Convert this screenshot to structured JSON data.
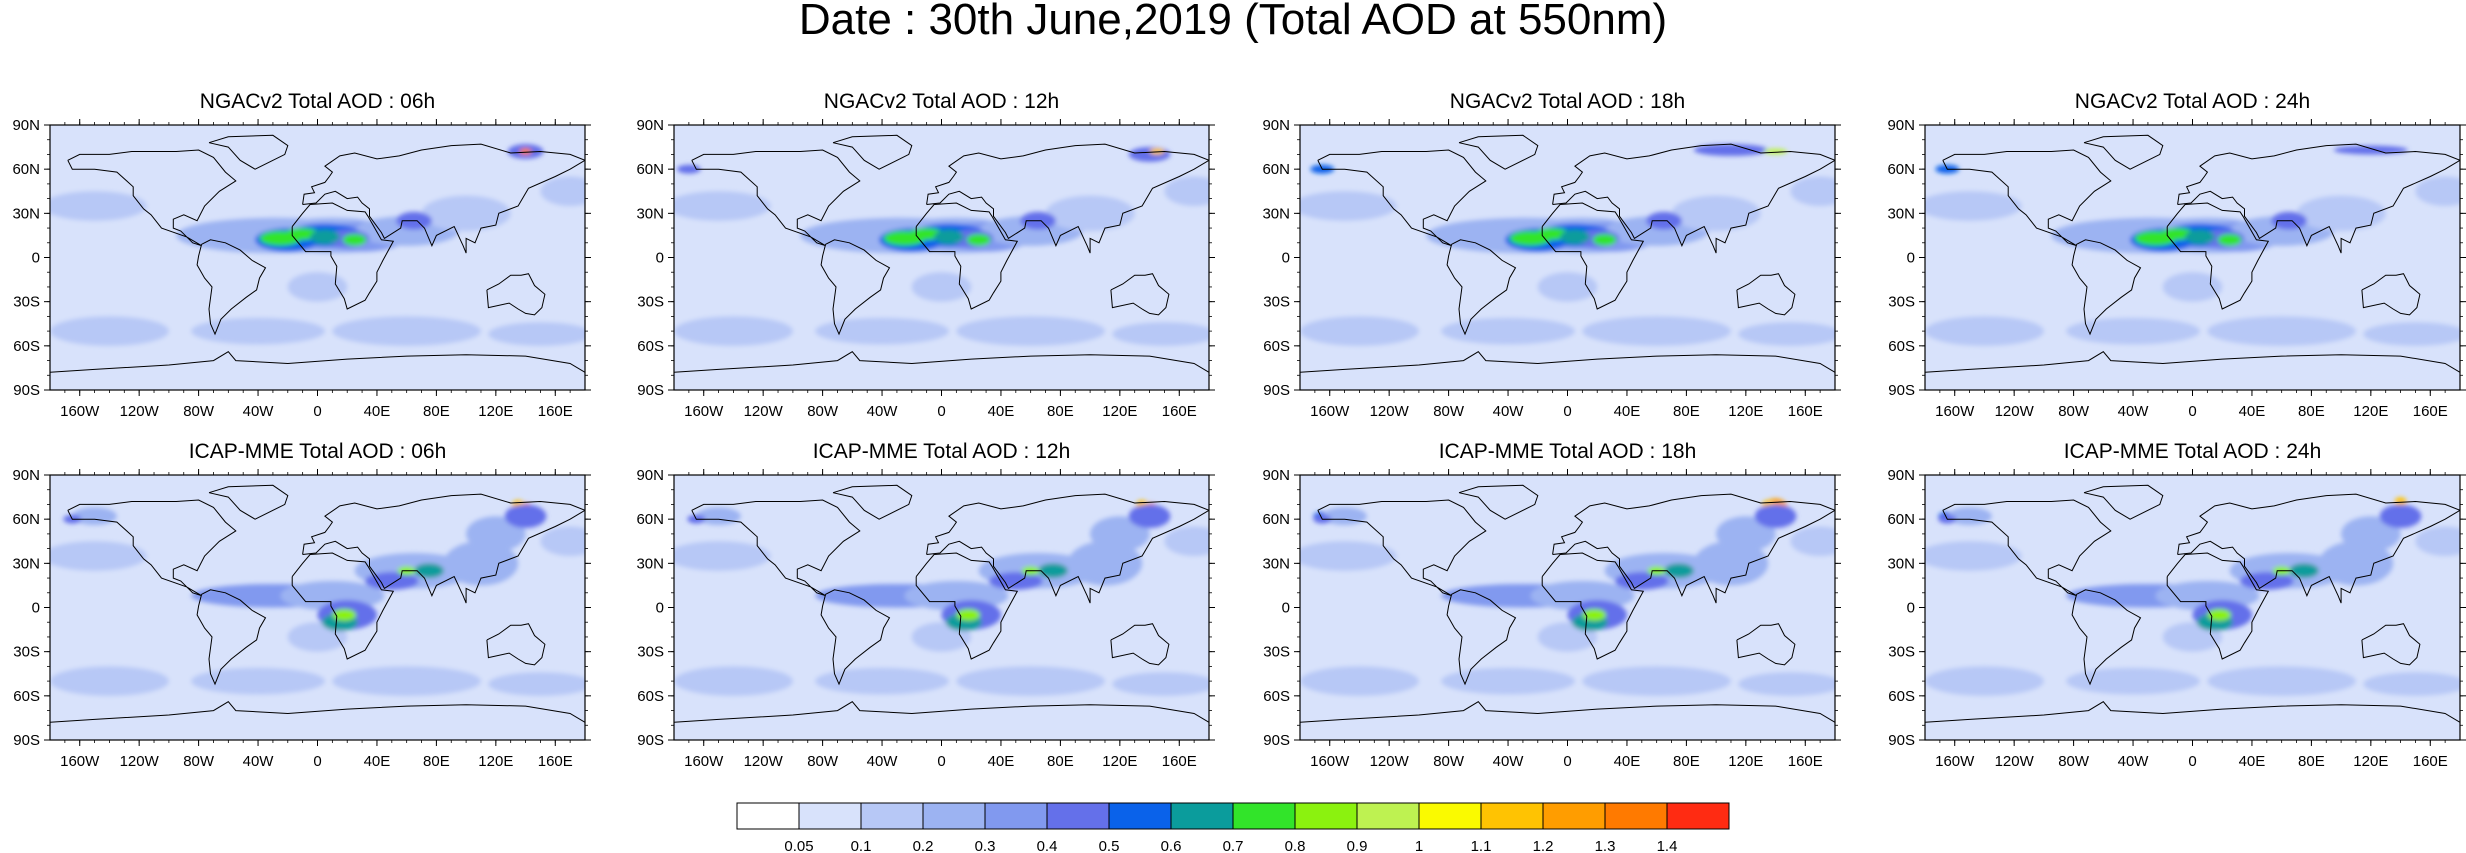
{
  "title": "Date : 30th June,2019 (Total AOD at 550nm)",
  "panels": [
    {
      "title": "NGACv2 Total AOD : 06h",
      "model": "NGACv2",
      "forecast_hour": "06h"
    },
    {
      "title": "NGACv2 Total AOD : 12h",
      "model": "NGACv2",
      "forecast_hour": "12h"
    },
    {
      "title": "NGACv2 Total AOD : 18h",
      "model": "NGACv2",
      "forecast_hour": "18h"
    },
    {
      "title": "NGACv2 Total AOD : 24h",
      "model": "NGACv2",
      "forecast_hour": "24h"
    },
    {
      "title": "ICAP-MME Total AOD : 06h",
      "model": "ICAP-MME",
      "forecast_hour": "06h"
    },
    {
      "title": "ICAP-MME Total AOD : 12h",
      "model": "ICAP-MME",
      "forecast_hour": "12h"
    },
    {
      "title": "ICAP-MME Total AOD : 18h",
      "model": "ICAP-MME",
      "forecast_hour": "18h"
    },
    {
      "title": "ICAP-MME Total AOD : 24h",
      "model": "ICAP-MME",
      "forecast_hour": "24h"
    }
  ],
  "lat_labels": [
    "90N",
    "60N",
    "30N",
    "0",
    "30S",
    "60S",
    "90S"
  ],
  "lon_labels": [
    "160W",
    "120W",
    "80W",
    "40W",
    "0",
    "40E",
    "80E",
    "120E",
    "160E"
  ],
  "colorbar": {
    "levels": [
      "0.05",
      "0.1",
      "0.2",
      "0.3",
      "0.4",
      "0.5",
      "0.6",
      "0.7",
      "0.8",
      "0.9",
      "1",
      "1.1",
      "1.2",
      "1.3",
      "1.4"
    ],
    "colors": [
      "#ffffff",
      "#d8e2fb",
      "#b7c8f6",
      "#9cb3f2",
      "#8199ef",
      "#6470ea",
      "#0a62ea",
      "#0b9c9c",
      "#32e42a",
      "#8bf20f",
      "#bef251",
      "#fafa00",
      "#ffc302",
      "#ff9d00",
      "#ff7a00",
      "#ff2b12"
    ]
  }
}
